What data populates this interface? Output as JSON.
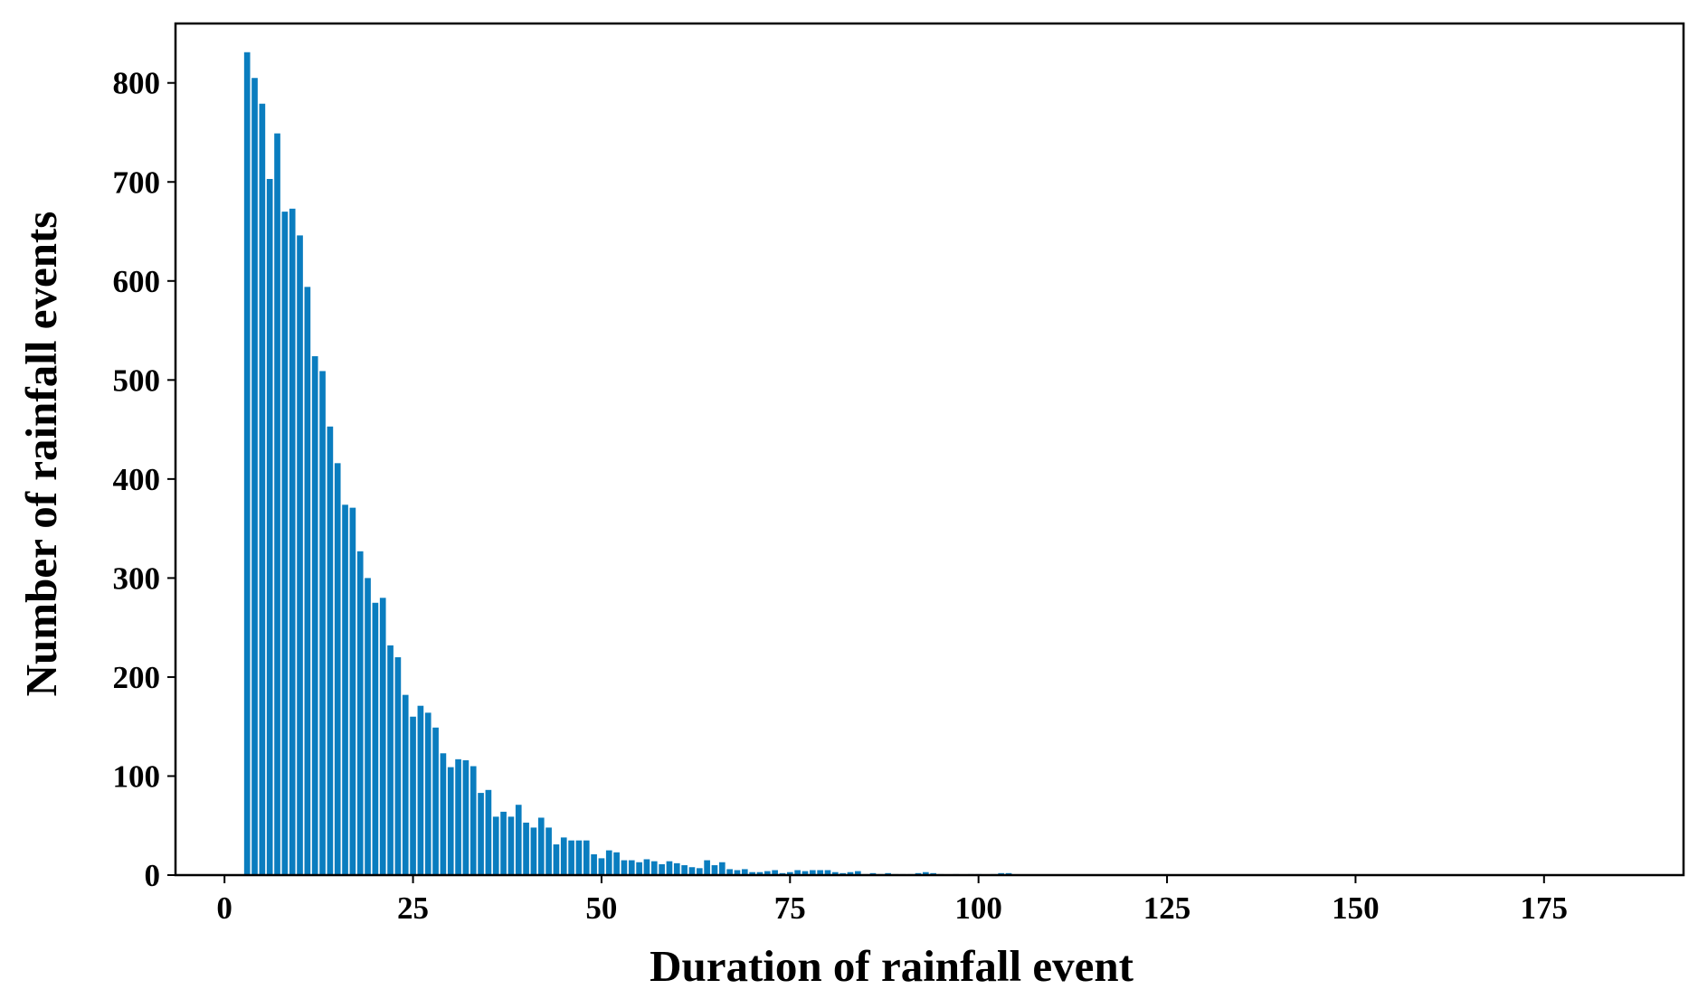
{
  "chart_data": {
    "type": "bar",
    "xlabel": "Duration of rainfall event",
    "ylabel": "Number of rainfall events",
    "xlim": [
      -6.5,
      193.5
    ],
    "ylim": [
      0,
      860
    ],
    "xticks": [
      0,
      25,
      50,
      75,
      100,
      125,
      150,
      175
    ],
    "yticks": [
      0,
      100,
      200,
      300,
      400,
      500,
      600,
      700,
      800
    ],
    "grid": false,
    "bar_color": "#0a7dbf",
    "x": [
      3,
      4,
      5,
      6,
      7,
      8,
      9,
      10,
      11,
      12,
      13,
      14,
      15,
      16,
      17,
      18,
      19,
      20,
      21,
      22,
      23,
      24,
      25,
      26,
      27,
      28,
      29,
      30,
      31,
      32,
      33,
      34,
      35,
      36,
      37,
      38,
      39,
      40,
      41,
      42,
      43,
      44,
      45,
      46,
      47,
      48,
      49,
      50,
      51,
      52,
      53,
      54,
      55,
      56,
      57,
      58,
      59,
      60,
      61,
      62,
      63,
      64,
      65,
      66,
      67,
      68,
      69,
      70,
      71,
      72,
      73,
      74,
      75,
      76,
      77,
      78,
      79,
      80,
      81,
      82,
      83,
      84,
      85,
      86,
      87,
      88,
      89,
      90,
      91,
      92,
      93,
      94,
      95,
      96,
      97,
      98,
      99,
      100,
      101,
      102,
      103,
      104
    ],
    "values": [
      831,
      805,
      779,
      703,
      749,
      670,
      673,
      646,
      594,
      524,
      509,
      453,
      416,
      374,
      371,
      327,
      300,
      275,
      280,
      232,
      220,
      182,
      160,
      171,
      164,
      149,
      123,
      109,
      117,
      116,
      110,
      83,
      86,
      59,
      64,
      59,
      71,
      53,
      48,
      58,
      48,
      31,
      38,
      35,
      35,
      35,
      21,
      17,
      25,
      23,
      15,
      15,
      13,
      16,
      14,
      11,
      14,
      12,
      10,
      8,
      7,
      15,
      10,
      13,
      6,
      5,
      6,
      3,
      3,
      4,
      5,
      2,
      3,
      5,
      4,
      5,
      5,
      5,
      3,
      2,
      3,
      4,
      1,
      2,
      1,
      2,
      1,
      1,
      1,
      2,
      3,
      2,
      1,
      0,
      1,
      0,
      1,
      1,
      0,
      1,
      2,
      2
    ]
  }
}
